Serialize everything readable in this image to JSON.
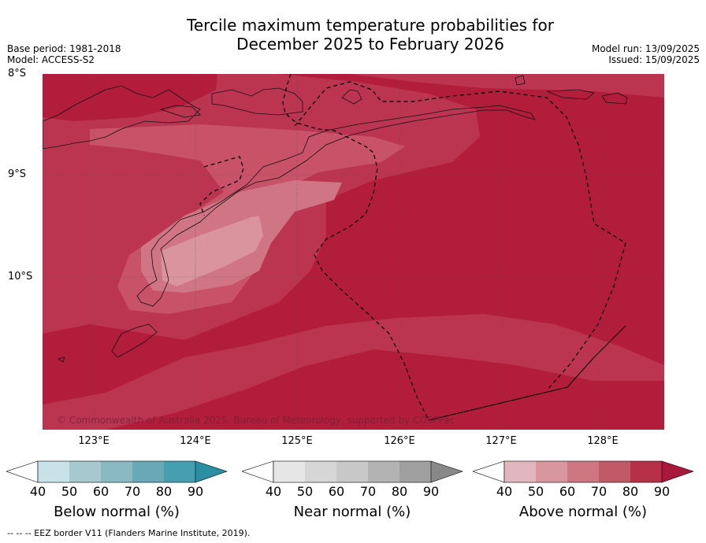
{
  "title_line1": "Tercile maximum temperature probabilities for",
  "title_line2": "December 2025 to February 2026",
  "meta": {
    "base_period": "Base period: 1981-2018",
    "model": "Model: ACCESS-S2",
    "model_run": "Model run: 13/09/2025",
    "issued": "Issued: 15/09/2025"
  },
  "axes": {
    "lat_labels": [
      "8°S",
      "9°S",
      "10°S"
    ],
    "lon_labels": [
      "123°E",
      "124°E",
      "125°E",
      "126°E",
      "127°E",
      "128°E"
    ]
  },
  "copyright": "© Commonwealth of Australia 2025, Bureau of Meteorology, supported by COSPPac",
  "colorbars": [
    {
      "title": "Below normal (%)",
      "ticks": [
        "40",
        "50",
        "60",
        "70",
        "80",
        "90"
      ],
      "colors": [
        "#ffffff",
        "#c9e2e9",
        "#a6c8ce",
        "#8ab9c2",
        "#6aa8b5",
        "#459fb0",
        "#2a8fa3"
      ]
    },
    {
      "title": "Near normal (%)",
      "ticks": [
        "40",
        "50",
        "60",
        "70",
        "80",
        "90"
      ],
      "colors": [
        "#ffffff",
        "#e6e6e6",
        "#d6d6d6",
        "#c8c8c8",
        "#b3b3b3",
        "#9f9f9f",
        "#888888"
      ]
    },
    {
      "title": "Above normal (%)",
      "ticks": [
        "40",
        "50",
        "60",
        "70",
        "80",
        "90"
      ],
      "colors": [
        "#ffffff",
        "#e2b6bf",
        "#d8969f",
        "#cc7782",
        "#c25967",
        "#b83048",
        "#a8183a"
      ]
    }
  ],
  "map_colors": {
    "p90": "#b11d3b",
    "p80": "#bb3550",
    "p70": "#c85268",
    "p60": "#d07584",
    "p50": "#d9949e"
  },
  "footnote": "--  --  -- EEZ border V11 (Flanders Marine Institute, 2019)."
}
